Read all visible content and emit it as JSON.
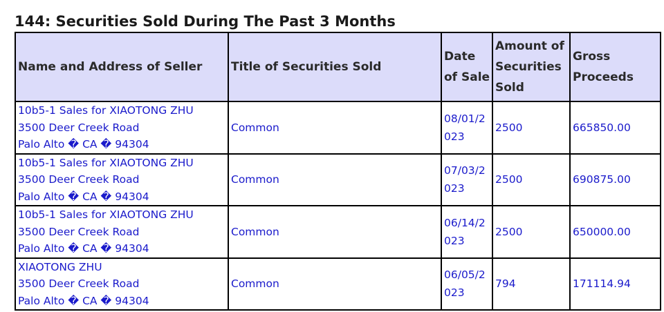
{
  "title": "144: Securities Sold During The Past 3 Months",
  "columns": [
    "Name and Address of Seller",
    "Title of Securities Sold",
    "Date of Sale",
    "Amount of Securities Sold",
    "Gross Proceeds"
  ],
  "rows": [
    {
      "name": "10b5-1 Sales for XIAOTONG ZHU",
      "street": "3500 Deer Creek Road",
      "city": "Palo Alto � CA � 94304",
      "title": "Common",
      "date": "08/01/2023",
      "amount": "2500",
      "proceeds": "665850.00"
    },
    {
      "name": "10b5-1 Sales for XIAOTONG ZHU",
      "street": "3500 Deer Creek Road",
      "city": "Palo Alto � CA � 94304",
      "title": "Common",
      "date": "07/03/2023",
      "amount": "2500",
      "proceeds": "690875.00"
    },
    {
      "name": "10b5-1 Sales for XIAOTONG ZHU",
      "street": "3500 Deer Creek Road",
      "city": "Palo Alto � CA � 94304",
      "title": "Common",
      "date": "06/14/2023",
      "amount": "2500",
      "proceeds": "650000.00"
    },
    {
      "name": "XIAOTONG ZHU",
      "street": "3500 Deer Creek Road",
      "city": "Palo Alto � CA � 94304",
      "title": "Common",
      "date": "06/05/2023",
      "amount": "794",
      "proceeds": "171114.94"
    }
  ]
}
